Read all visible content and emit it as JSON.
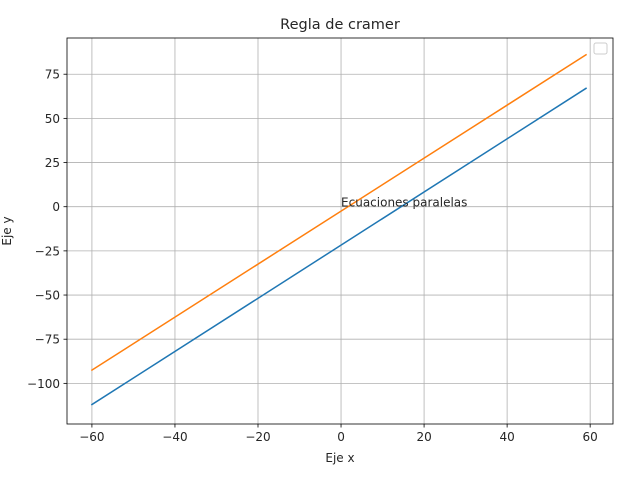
{
  "chart_data": {
    "type": "line",
    "title": "Regla de cramer",
    "xlabel": "Eje x",
    "ylabel": "Eje y",
    "xlim": [
      -66,
      65.5
    ],
    "ylim": [
      -123,
      95.5
    ],
    "xticks": [
      -60,
      -40,
      -20,
      0,
      20,
      40,
      60
    ],
    "xtick_labels": [
      "−60",
      "−40",
      "−20",
      "0",
      "20",
      "40",
      "60"
    ],
    "yticks": [
      -100,
      -75,
      -50,
      -25,
      0,
      25,
      50,
      75
    ],
    "ytick_labels": [
      "−100",
      "−75",
      "−50",
      "−25",
      "0",
      "25",
      "50",
      "75"
    ],
    "grid": true,
    "legend": {
      "placement": "upper right",
      "entries": []
    },
    "series": [
      {
        "color": "#1f77b4",
        "x": [
          -60,
          59
        ],
        "y": [
          -112,
          67
        ]
      },
      {
        "color": "#ff7f0e",
        "x": [
          -60,
          59
        ],
        "y": [
          -92.5,
          86
        ]
      }
    ],
    "annotations": [
      {
        "text": "Ecuaciones paralelas",
        "x": 0,
        "y": 0
      }
    ]
  }
}
